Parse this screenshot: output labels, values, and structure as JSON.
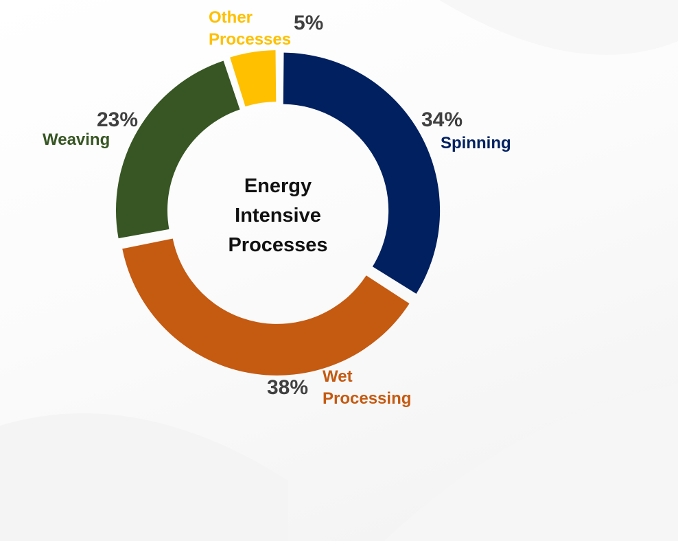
{
  "chart_data": {
    "type": "pie",
    "donut": true,
    "center_title": [
      "Energy",
      "Intensive",
      "Processes"
    ],
    "slices": [
      {
        "label_lines": [
          "Spinning"
        ],
        "value": 34,
        "value_label": "34%",
        "color": "#002060"
      },
      {
        "label_lines": [
          "Wet",
          "Processing"
        ],
        "value": 38,
        "value_label": "38%",
        "color": "#C55A11"
      },
      {
        "label_lines": [
          "Weaving"
        ],
        "value": 23,
        "value_label": "23%",
        "color": "#375623"
      },
      {
        "label_lines": [
          "Other",
          "Processes"
        ],
        "value": 5,
        "value_label": "5%",
        "color": "#FFC000"
      }
    ],
    "start_angle_deg": 0,
    "direction": "clockwise",
    "legend": "none",
    "data_label_color": "#404040"
  }
}
